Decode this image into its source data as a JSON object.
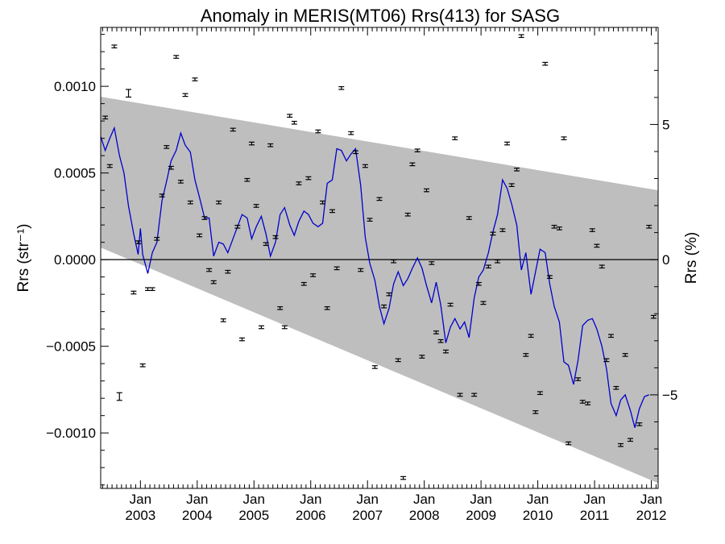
{
  "chart_data": {
    "type": "scatter",
    "title": "Anomaly in MERIS(MT06) Rrs(413) for SASG",
    "ylabel_left": "Rrs (str⁻¹)",
    "ylabel_right": "Rrs (%)",
    "xlim": [
      2002.3,
      2012.12
    ],
    "ylim": [
      -0.00132,
      0.00134
    ],
    "y2lim": [
      -8.46,
      8.59
    ],
    "x_ticks": [
      {
        "value": 2003,
        "label_top": "Jan",
        "label_bottom": "2003"
      },
      {
        "value": 2004,
        "label_top": "Jan",
        "label_bottom": "2004"
      },
      {
        "value": 2005,
        "label_top": "Jan",
        "label_bottom": "2005"
      },
      {
        "value": 2006,
        "label_top": "Jan",
        "label_bottom": "2006"
      },
      {
        "value": 2007,
        "label_top": "Jan",
        "label_bottom": "2007"
      },
      {
        "value": 2008,
        "label_top": "Jan",
        "label_bottom": "2008"
      },
      {
        "value": 2009,
        "label_top": "Jan",
        "label_bottom": "2009"
      },
      {
        "value": 2010,
        "label_top": "Jan",
        "label_bottom": "2010"
      },
      {
        "value": 2011,
        "label_top": "Jan",
        "label_bottom": "2011"
      },
      {
        "value": 2012,
        "label_top": "Jan",
        "label_bottom": "2012"
      }
    ],
    "y_ticks": [
      {
        "value": 0.001,
        "label": "0.0010"
      },
      {
        "value": 0.0005,
        "label": "0.0005"
      },
      {
        "value": 0.0,
        "label": "0.0000"
      },
      {
        "value": -0.0005,
        "label": "−0.0005"
      },
      {
        "value": -0.001,
        "label": "−0.0010"
      }
    ],
    "y2_ticks": [
      {
        "value": 5,
        "label": "5"
      },
      {
        "value": 0,
        "label": "0"
      },
      {
        "value": -5,
        "label": "−5"
      }
    ],
    "band": {
      "upper": [
        [
          2002.3,
          0.00094
        ],
        [
          2012.12,
          0.0004
        ]
      ],
      "lower": [
        [
          2002.3,
          7e-05
        ],
        [
          2012.12,
          -0.00129
        ]
      ],
      "color": "#bebebe"
    },
    "zero_line": 0.0,
    "colors": {
      "smooth_line": "#0000cc",
      "points": "#000000",
      "band": "#bebebe"
    },
    "monthly_anomaly": [
      [
        2002.38,
        0.00082,
        8e-06
      ],
      [
        2002.46,
        0.00054,
        8e-06
      ],
      [
        2002.54,
        0.00123,
        8e-06
      ],
      [
        2002.63,
        -0.00079,
        2.2e-05
      ],
      [
        2002.79,
        0.00096,
        2.2e-05
      ],
      [
        2002.88,
        -0.00019,
        8e-06
      ],
      [
        2002.96,
        0.0001,
        8e-06
      ],
      [
        2003.04,
        -0.00061,
        8e-06
      ],
      [
        2003.13,
        -0.00017,
        8e-06
      ],
      [
        2003.21,
        -0.00017,
        8e-06
      ],
      [
        2003.29,
        0.00012,
        8e-06
      ],
      [
        2003.38,
        0.00037,
        8e-06
      ],
      [
        2003.46,
        0.00065,
        8e-06
      ],
      [
        2003.54,
        0.00053,
        8e-06
      ],
      [
        2003.63,
        0.00117,
        8e-06
      ],
      [
        2003.71,
        0.00045,
        8e-06
      ],
      [
        2003.79,
        0.00095,
        8e-06
      ],
      [
        2003.88,
        0.00033,
        8e-06
      ],
      [
        2003.96,
        0.00104,
        8e-06
      ],
      [
        2004.04,
        0.00014,
        8e-06
      ],
      [
        2004.13,
        0.00024,
        8e-06
      ],
      [
        2004.21,
        -6e-05,
        8e-06
      ],
      [
        2004.29,
        -0.00013,
        8e-06
      ],
      [
        2004.38,
        0.00033,
        8e-06
      ],
      [
        2004.46,
        -0.00035,
        8e-06
      ],
      [
        2004.54,
        -7e-05,
        8e-06
      ],
      [
        2004.63,
        0.00075,
        8e-06
      ],
      [
        2004.71,
        0.00019,
        8e-06
      ],
      [
        2004.79,
        -0.00046,
        8e-06
      ],
      [
        2004.88,
        0.00046,
        8e-06
      ],
      [
        2004.96,
        0.00067,
        8e-06
      ],
      [
        2005.04,
        0.00031,
        8e-06
      ],
      [
        2005.13,
        -0.00039,
        8e-06
      ],
      [
        2005.21,
        9e-05,
        8e-06
      ],
      [
        2005.29,
        0.00066,
        8e-06
      ],
      [
        2005.38,
        0.00013,
        8e-06
      ],
      [
        2005.46,
        -0.00028,
        8e-06
      ],
      [
        2005.54,
        -0.00039,
        8e-06
      ],
      [
        2005.63,
        0.00083,
        8e-06
      ],
      [
        2005.71,
        0.00079,
        8e-06
      ],
      [
        2005.79,
        0.00044,
        8e-06
      ],
      [
        2005.88,
        -0.00014,
        8e-06
      ],
      [
        2005.96,
        0.00047,
        8e-06
      ],
      [
        2006.04,
        -9e-05,
        8e-06
      ],
      [
        2006.13,
        0.00074,
        8e-06
      ],
      [
        2006.21,
        0.00033,
        8e-06
      ],
      [
        2006.29,
        -0.00028,
        8e-06
      ],
      [
        2006.38,
        0.00028,
        8e-06
      ],
      [
        2006.46,
        -5e-05,
        8e-06
      ],
      [
        2006.54,
        0.00099,
        8e-06
      ],
      [
        2006.71,
        0.00073,
        8e-06
      ],
      [
        2006.79,
        0.00062,
        8e-06
      ],
      [
        2006.88,
        -6e-05,
        8e-06
      ],
      [
        2006.96,
        0.00054,
        8e-06
      ],
      [
        2007.04,
        0.00023,
        8e-06
      ],
      [
        2007.13,
        -0.00062,
        8e-06
      ],
      [
        2007.21,
        0.00035,
        8e-06
      ],
      [
        2007.29,
        -0.00027,
        8e-06
      ],
      [
        2007.38,
        -0.0002,
        8e-06
      ],
      [
        2007.46,
        -1e-05,
        8e-06
      ],
      [
        2007.54,
        -0.00058,
        8e-06
      ],
      [
        2007.63,
        -0.00126,
        8e-06
      ],
      [
        2007.71,
        0.00026,
        8e-06
      ],
      [
        2007.79,
        0.00055,
        8e-06
      ],
      [
        2007.88,
        0.00063,
        8e-06
      ],
      [
        2007.96,
        -0.00056,
        8e-06
      ],
      [
        2008.04,
        0.0004,
        8e-06
      ],
      [
        2008.13,
        -2e-05,
        8e-06
      ],
      [
        2008.21,
        -0.00042,
        8e-06
      ],
      [
        2008.29,
        -0.00047,
        8e-06
      ],
      [
        2008.38,
        -0.00053,
        8e-06
      ],
      [
        2008.46,
        -0.00026,
        8e-06
      ],
      [
        2008.54,
        0.0007,
        8e-06
      ],
      [
        2008.63,
        -0.00078,
        8e-06
      ],
      [
        2008.79,
        0.00024,
        8e-06
      ],
      [
        2008.88,
        -0.00078,
        8e-06
      ],
      [
        2008.96,
        -0.00014,
        8e-06
      ],
      [
        2009.04,
        -0.00025,
        8e-06
      ],
      [
        2009.13,
        -4e-05,
        8e-06
      ],
      [
        2009.21,
        0.00015,
        8e-06
      ],
      [
        2009.29,
        -1e-05,
        8e-06
      ],
      [
        2009.38,
        0.00017,
        8e-06
      ],
      [
        2009.46,
        0.00067,
        8e-06
      ],
      [
        2009.54,
        0.00043,
        8e-06
      ],
      [
        2009.63,
        0.00052,
        8e-06
      ],
      [
        2009.71,
        0.00129,
        8e-06
      ],
      [
        2009.79,
        -0.00055,
        8e-06
      ],
      [
        2009.88,
        -0.00044,
        8e-06
      ],
      [
        2009.96,
        -0.00088,
        8e-06
      ],
      [
        2010.04,
        -0.00077,
        8e-06
      ],
      [
        2010.13,
        0.00113,
        8e-06
      ],
      [
        2010.21,
        -0.0001,
        8e-06
      ],
      [
        2010.29,
        0.00019,
        8e-06
      ],
      [
        2010.38,
        0.00018,
        8e-06
      ],
      [
        2010.46,
        0.0007,
        8e-06
      ],
      [
        2010.54,
        -0.00106,
        8e-06
      ],
      [
        2010.71,
        -0.00069,
        8e-06
      ],
      [
        2010.79,
        -0.00082,
        8e-06
      ],
      [
        2010.88,
        -0.00083,
        8e-06
      ],
      [
        2010.96,
        0.00017,
        8e-06
      ],
      [
        2011.04,
        8e-05,
        8e-06
      ],
      [
        2011.13,
        -4e-05,
        8e-06
      ],
      [
        2011.21,
        -0.00058,
        8e-06
      ],
      [
        2011.29,
        -0.00044,
        8e-06
      ],
      [
        2011.38,
        -0.00074,
        8e-06
      ],
      [
        2011.46,
        -0.00107,
        8e-06
      ],
      [
        2011.54,
        -0.00055,
        8e-06
      ],
      [
        2011.63,
        -0.00104,
        8e-06
      ],
      [
        2011.79,
        -0.00095,
        8e-06
      ],
      [
        2011.96,
        0.00019,
        8e-06
      ],
      [
        2012.04,
        -0.00033,
        8e-06
      ]
    ],
    "smoothed_anomaly": [
      [
        2002.3,
        0.00071
      ],
      [
        2002.38,
        0.00063
      ],
      [
        2002.46,
        0.0007
      ],
      [
        2002.54,
        0.00076
      ],
      [
        2002.63,
        0.0006
      ],
      [
        2002.71,
        0.0005
      ],
      [
        2002.79,
        0.00031
      ],
      [
        2002.88,
        0.00015
      ],
      [
        2002.96,
        3e-05
      ],
      [
        2003.0,
        0.00018
      ],
      [
        2003.04,
        3e-05
      ],
      [
        2003.13,
        -8e-05
      ],
      [
        2003.21,
        4e-05
      ],
      [
        2003.29,
        0.0001
      ],
      [
        2003.38,
        0.00034
      ],
      [
        2003.46,
        0.00045
      ],
      [
        2003.54,
        0.00057
      ],
      [
        2003.63,
        0.00063
      ],
      [
        2003.71,
        0.00073
      ],
      [
        2003.79,
        0.00066
      ],
      [
        2003.88,
        0.00062
      ],
      [
        2003.96,
        0.00046
      ],
      [
        2004.04,
        0.00036
      ],
      [
        2004.13,
        0.00024
      ],
      [
        2004.21,
        0.00024
      ],
      [
        2004.29,
        2e-05
      ],
      [
        2004.38,
        0.0001
      ],
      [
        2004.46,
        9e-05
      ],
      [
        2004.54,
        4e-05
      ],
      [
        2004.63,
        0.00012
      ],
      [
        2004.71,
        0.00019
      ],
      [
        2004.79,
        0.00026
      ],
      [
        2004.88,
        0.00024
      ],
      [
        2004.96,
        0.00012
      ],
      [
        2005.04,
        0.00019
      ],
      [
        2005.13,
        0.00025
      ],
      [
        2005.21,
        0.00015
      ],
      [
        2005.29,
        2e-05
      ],
      [
        2005.38,
        0.0001
      ],
      [
        2005.46,
        0.00026
      ],
      [
        2005.54,
        0.0003
      ],
      [
        2005.63,
        0.0002
      ],
      [
        2005.71,
        0.00014
      ],
      [
        2005.79,
        0.00022
      ],
      [
        2005.88,
        0.00028
      ],
      [
        2005.96,
        0.00026
      ],
      [
        2006.04,
        0.00021
      ],
      [
        2006.13,
        0.00019
      ],
      [
        2006.21,
        0.00021
      ],
      [
        2006.29,
        0.00044
      ],
      [
        2006.38,
        0.00046
      ],
      [
        2006.46,
        0.00064
      ],
      [
        2006.54,
        0.00063
      ],
      [
        2006.63,
        0.00057
      ],
      [
        2006.71,
        0.00061
      ],
      [
        2006.79,
        0.00064
      ],
      [
        2006.88,
        0.00043
      ],
      [
        2006.96,
        0.00013
      ],
      [
        2007.04,
        -2e-05
      ],
      [
        2007.13,
        -0.00012
      ],
      [
        2007.21,
        -0.00027
      ],
      [
        2007.29,
        -0.00037
      ],
      [
        2007.38,
        -0.00028
      ],
      [
        2007.46,
        -0.00014
      ],
      [
        2007.54,
        -7e-05
      ],
      [
        2007.63,
        -0.00015
      ],
      [
        2007.71,
        -0.00011
      ],
      [
        2007.79,
        -5e-05
      ],
      [
        2007.88,
        1e-05
      ],
      [
        2007.96,
        -5e-05
      ],
      [
        2008.04,
        -0.00015
      ],
      [
        2008.13,
        -0.00025
      ],
      [
        2008.21,
        -0.00013
      ],
      [
        2008.29,
        -0.00026
      ],
      [
        2008.38,
        -0.00048
      ],
      [
        2008.46,
        -0.00039
      ],
      [
        2008.54,
        -0.00034
      ],
      [
        2008.63,
        -0.0004
      ],
      [
        2008.71,
        -0.00036
      ],
      [
        2008.79,
        -0.00045
      ],
      [
        2008.88,
        -0.00022
      ],
      [
        2008.96,
        -0.0001
      ],
      [
        2009.04,
        -6e-05
      ],
      [
        2009.13,
        4e-05
      ],
      [
        2009.21,
        0.00016
      ],
      [
        2009.29,
        0.00026
      ],
      [
        2009.38,
        0.00046
      ],
      [
        2009.46,
        0.00041
      ],
      [
        2009.54,
        0.00032
      ],
      [
        2009.63,
        0.0002
      ],
      [
        2009.71,
        -6e-05
      ],
      [
        2009.79,
        4e-05
      ],
      [
        2009.88,
        -0.0002
      ],
      [
        2009.96,
        -7e-05
      ],
      [
        2010.04,
        6e-05
      ],
      [
        2010.13,
        4e-05
      ],
      [
        2010.21,
        -0.00014
      ],
      [
        2010.29,
        -0.00027
      ],
      [
        2010.38,
        -0.00036
      ],
      [
        2010.46,
        -0.00059
      ],
      [
        2010.54,
        -0.00061
      ],
      [
        2010.63,
        -0.00072
      ],
      [
        2010.71,
        -0.00058
      ],
      [
        2010.79,
        -0.00038
      ],
      [
        2010.88,
        -0.00035
      ],
      [
        2010.96,
        -0.00034
      ],
      [
        2011.04,
        -0.0004
      ],
      [
        2011.13,
        -0.0005
      ],
      [
        2011.21,
        -0.00063
      ],
      [
        2011.29,
        -0.00083
      ],
      [
        2011.38,
        -0.0009
      ],
      [
        2011.46,
        -0.00081
      ],
      [
        2011.54,
        -0.00078
      ],
      [
        2011.63,
        -0.00087
      ],
      [
        2011.71,
        -0.00097
      ],
      [
        2011.79,
        -0.00086
      ],
      [
        2011.88,
        -0.00079
      ],
      [
        2011.96,
        -0.00078
      ]
    ]
  }
}
